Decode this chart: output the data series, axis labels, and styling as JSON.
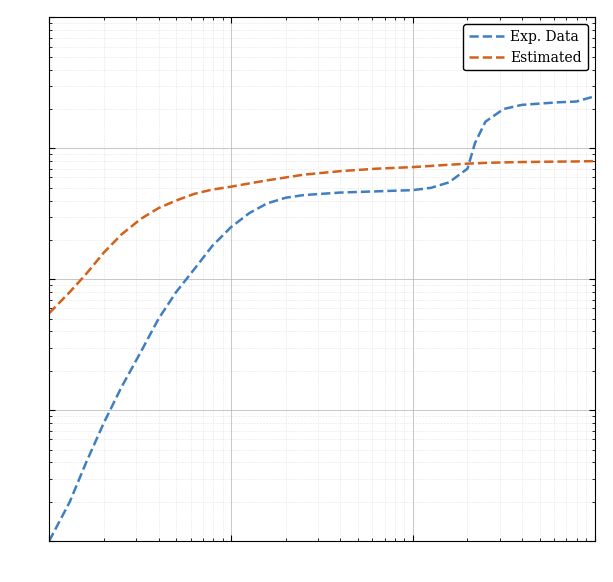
{
  "line1_label": "Exp. Data",
  "line1_color": "#3f7fc1",
  "line2_label": "Estimated",
  "line2_color": "#d4601a",
  "line_style": "--",
  "line_width": 1.8,
  "background_color": "#ffffff",
  "exp_x": [
    0.1,
    0.13,
    0.16,
    0.2,
    0.25,
    0.32,
    0.4,
    0.5,
    0.63,
    0.79,
    1.0,
    1.26,
    1.58,
    2.0,
    2.51,
    3.16,
    3.98,
    5.01,
    6.31,
    7.94,
    10.0,
    12.6,
    15.8,
    20.0,
    22.0,
    25.1,
    31.6,
    39.8,
    50.1,
    63.1,
    79.4,
    100.0
  ],
  "exp_y": [
    1e-09,
    2e-09,
    4e-09,
    8e-09,
    1.5e-08,
    2.8e-08,
    5e-08,
    8e-08,
    1.2e-07,
    1.8e-07,
    2.5e-07,
    3.2e-07,
    3.8e-07,
    4.2e-07,
    4.4e-07,
    4.5e-07,
    4.6e-07,
    4.65e-07,
    4.7e-07,
    4.75e-07,
    4.8e-07,
    5e-07,
    5.5e-07,
    7e-07,
    1.1e-06,
    1.6e-06,
    2e-06,
    2.15e-06,
    2.2e-06,
    2.25e-06,
    2.28e-06,
    2.5e-06
  ],
  "est_x": [
    0.1,
    0.13,
    0.16,
    0.2,
    0.25,
    0.32,
    0.4,
    0.5,
    0.63,
    0.79,
    1.0,
    1.26,
    1.58,
    2.0,
    2.51,
    3.16,
    3.98,
    5.01,
    6.31,
    7.94,
    10.0,
    12.6,
    15.8,
    20.0,
    25.1,
    31.6,
    39.8,
    50.1,
    63.1,
    79.4,
    100.0
  ],
  "est_y": [
    5.5e-08,
    8e-08,
    1.1e-07,
    1.6e-07,
    2.2e-07,
    2.9e-07,
    3.5e-07,
    4e-07,
    4.5e-07,
    4.85e-07,
    5.1e-07,
    5.4e-07,
    5.7e-07,
    6e-07,
    6.3e-07,
    6.5e-07,
    6.7e-07,
    6.85e-07,
    7e-07,
    7.1e-07,
    7.2e-07,
    7.35e-07,
    7.5e-07,
    7.65e-07,
    7.75e-07,
    7.82e-07,
    7.87e-07,
    7.9e-07,
    7.93e-07,
    7.95e-07,
    8e-07
  ],
  "xlim": [
    0.1,
    100
  ],
  "ylim": [
    1e-09,
    1e-05
  ]
}
